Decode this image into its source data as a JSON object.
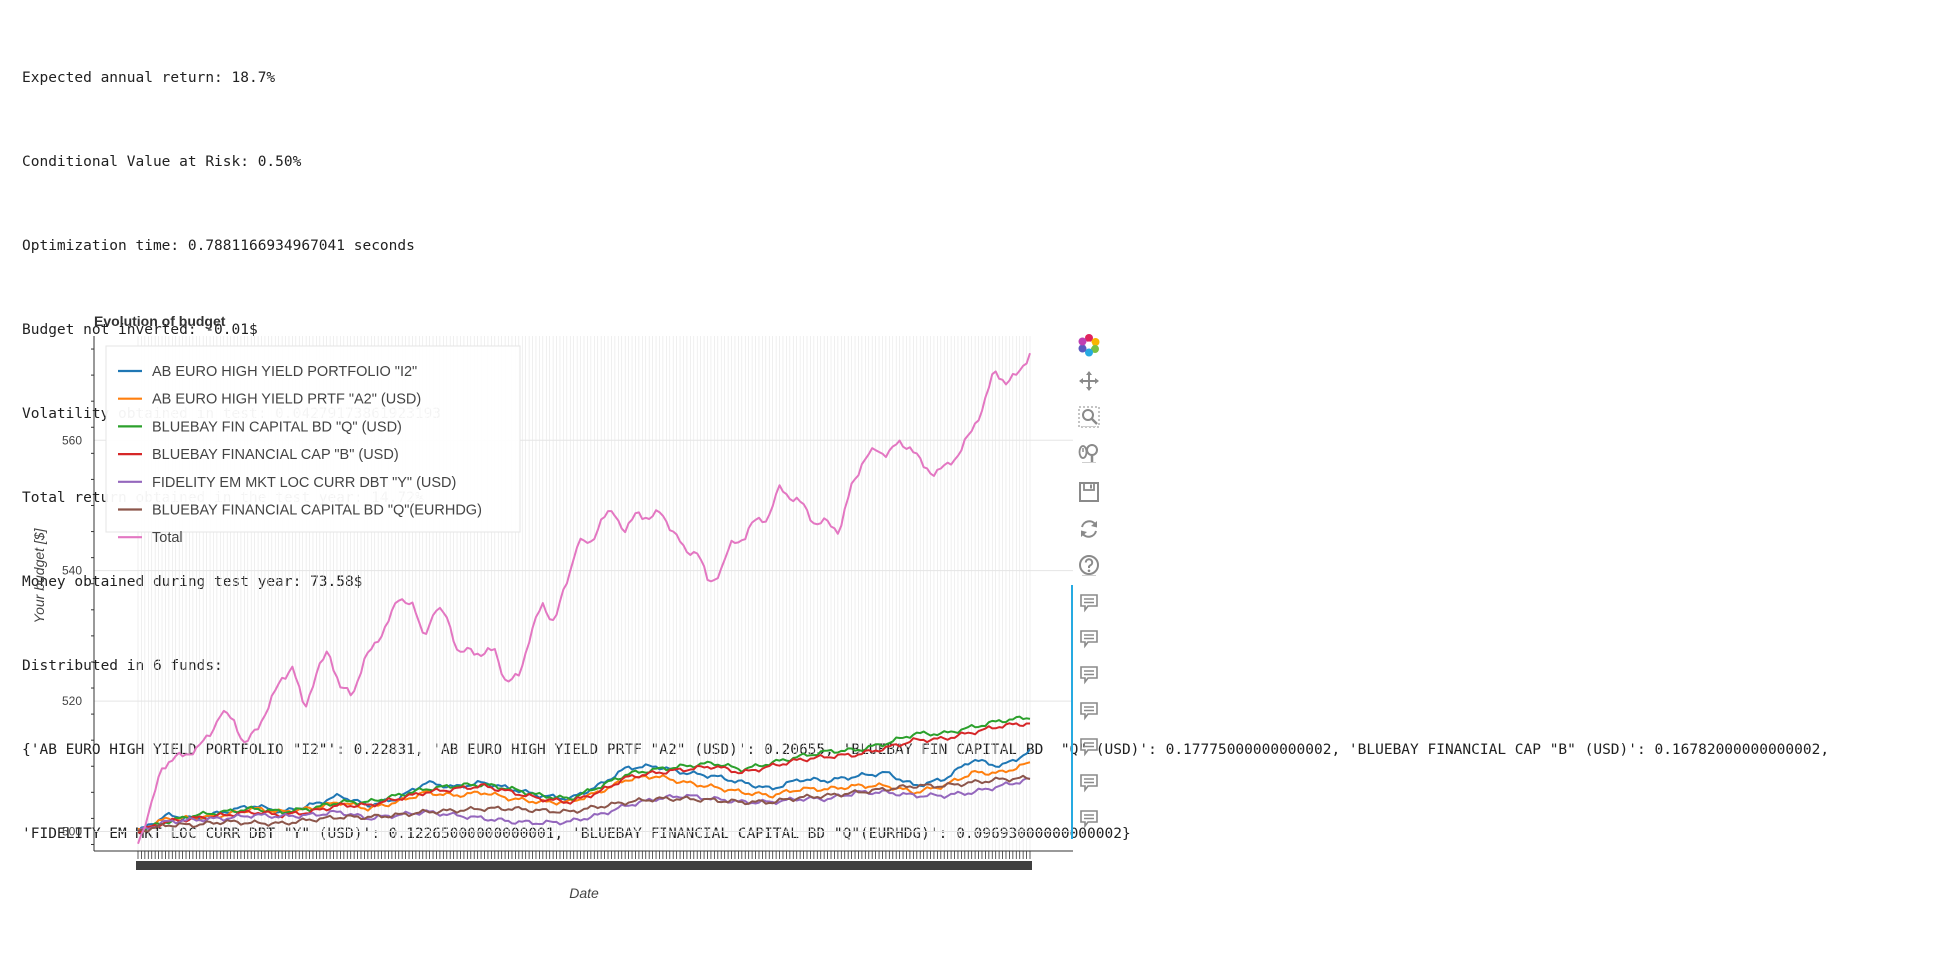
{
  "output": {
    "lines": [
      "Expected annual return: 18.7%",
      "Conditional Value at Risk: 0.50%",
      "Optimization time: 0.7881166934967041 seconds",
      "Budget not inverted: -0.01$",
      "Volatility obtained in test: 0.04279173861923193",
      "Total return obtained in the test year: 14.72%",
      "Money obtained during test year: 73.58$",
      "Distributed in 6 funds:",
      "{'AB EURO HIGH YIELD PORTFOLIO \"I2\"': 0.22831, 'AB EURO HIGH YIELD PRTF \"A2\" (USD)': 0.20655, 'BLUEBAY FIN CAPITAL BD  \"Q\" (USD)': 0.17775000000000002, 'BLUEBAY FINANCIAL CAP \"B\" (USD)': 0.16782000000000002,",
      "'FIDELITY EM MKT LOC CURR DBT \"Y\" (USD)': 0.12265000000000001, 'BLUEBAY FINANCIAL CAPITAL BD \"Q\"(EURHDG)': 0.09693000000000002}"
    ]
  },
  "chart_data": {
    "type": "line",
    "title": "Evolution of budget",
    "xlabel": "Date",
    "ylabel": "Your budget [$]",
    "ylim": [
      497,
      576
    ],
    "yticks": [
      500,
      520,
      540,
      560
    ],
    "x_points": 261,
    "grid": true,
    "legend_position": "top-left",
    "series": [
      {
        "name": "AB EURO HIGH YIELD PORTFOLIO \"I2\"",
        "color": "#1f77b4",
        "anchors": [
          [
            0,
            500
          ],
          [
            10,
            502.5
          ],
          [
            20,
            502
          ],
          [
            30,
            503
          ],
          [
            40,
            504
          ],
          [
            50,
            503
          ],
          [
            60,
            504
          ],
          [
            70,
            505.5
          ],
          [
            80,
            504
          ],
          [
            90,
            505
          ],
          [
            100,
            507.5
          ],
          [
            110,
            506.8
          ],
          [
            120,
            507.5
          ],
          [
            130,
            506.5
          ],
          [
            140,
            505.5
          ],
          [
            150,
            505
          ],
          [
            160,
            507
          ],
          [
            170,
            509.8
          ],
          [
            180,
            510
          ],
          [
            190,
            509
          ],
          [
            200,
            508.5
          ],
          [
            210,
            507.5
          ],
          [
            220,
            506.5
          ],
          [
            230,
            508
          ],
          [
            240,
            507.8
          ],
          [
            250,
            508.5
          ],
          [
            260,
            509
          ],
          [
            270,
            507
          ],
          [
            280,
            508
          ],
          [
            290,
            511
          ],
          [
            300,
            510
          ],
          [
            310,
            512.2
          ]
        ]
      },
      {
        "name": "AB EURO HIGH YIELD PRTF \"A2\" (USD)",
        "color": "#ff7f0e",
        "anchors": [
          [
            0,
            500
          ],
          [
            10,
            502
          ],
          [
            20,
            502
          ],
          [
            30,
            502.5
          ],
          [
            40,
            503.5
          ],
          [
            50,
            503
          ],
          [
            60,
            503.5
          ],
          [
            70,
            504.5
          ],
          [
            80,
            503.5
          ],
          [
            90,
            504.5
          ],
          [
            100,
            506
          ],
          [
            110,
            505.5
          ],
          [
            120,
            506
          ],
          [
            130,
            505
          ],
          [
            140,
            504.5
          ],
          [
            150,
            504.5
          ],
          [
            160,
            506
          ],
          [
            170,
            508
          ],
          [
            180,
            508.5
          ],
          [
            190,
            507.5
          ],
          [
            200,
            506.8
          ],
          [
            210,
            506
          ],
          [
            220,
            505.5
          ],
          [
            230,
            506.5
          ],
          [
            240,
            506.5
          ],
          [
            250,
            507
          ],
          [
            260,
            507
          ],
          [
            270,
            506
          ],
          [
            280,
            507
          ],
          [
            290,
            509
          ],
          [
            300,
            509
          ],
          [
            310,
            510.5
          ]
        ]
      },
      {
        "name": "BLUEBAY FIN CAPITAL BD  \"Q\" (USD)",
        "color": "#2ca02c",
        "anchors": [
          [
            0,
            500
          ],
          [
            10,
            501.5
          ],
          [
            20,
            502.5
          ],
          [
            30,
            503
          ],
          [
            40,
            503.5
          ],
          [
            50,
            503
          ],
          [
            60,
            503.5
          ],
          [
            70,
            504.5
          ],
          [
            80,
            504.5
          ],
          [
            90,
            505.5
          ],
          [
            100,
            506.5
          ],
          [
            110,
            507
          ],
          [
            120,
            507.2
          ],
          [
            130,
            506.5
          ],
          [
            140,
            505.5
          ],
          [
            150,
            505
          ],
          [
            160,
            506.8
          ],
          [
            170,
            508.8
          ],
          [
            180,
            509.5
          ],
          [
            190,
            510
          ],
          [
            200,
            510.5
          ],
          [
            210,
            509.5
          ],
          [
            220,
            510.5
          ],
          [
            230,
            511.5
          ],
          [
            240,
            512.3
          ],
          [
            250,
            512.5
          ],
          [
            260,
            513.5
          ],
          [
            270,
            515
          ],
          [
            280,
            515
          ],
          [
            290,
            516
          ],
          [
            300,
            517
          ],
          [
            310,
            517.5
          ]
        ]
      },
      {
        "name": "BLUEBAY FINANCIAL CAP \"B\" (USD)",
        "color": "#d62728",
        "anchors": [
          [
            0,
            500
          ],
          [
            10,
            501.5
          ],
          [
            20,
            502
          ],
          [
            30,
            502.5
          ],
          [
            40,
            503
          ],
          [
            50,
            502.5
          ],
          [
            60,
            503
          ],
          [
            70,
            504
          ],
          [
            80,
            504
          ],
          [
            90,
            505
          ],
          [
            100,
            506
          ],
          [
            110,
            506.5
          ],
          [
            120,
            507
          ],
          [
            130,
            506
          ],
          [
            140,
            505
          ],
          [
            150,
            504.5
          ],
          [
            160,
            506
          ],
          [
            170,
            508.3
          ],
          [
            180,
            509
          ],
          [
            190,
            509.5
          ],
          [
            200,
            510
          ],
          [
            210,
            509
          ],
          [
            220,
            510
          ],
          [
            230,
            511
          ],
          [
            240,
            511.5
          ],
          [
            250,
            511.8
          ],
          [
            260,
            512.8
          ],
          [
            270,
            514
          ],
          [
            280,
            514.2
          ],
          [
            290,
            515.2
          ],
          [
            300,
            516.2
          ],
          [
            310,
            516.6
          ]
        ]
      },
      {
        "name": "FIDELITY EM MKT LOC CURR DBT \"Y\" (USD)",
        "color": "#9467bd",
        "anchors": [
          [
            0,
            500
          ],
          [
            10,
            501.5
          ],
          [
            20,
            501.8
          ],
          [
            30,
            502
          ],
          [
            40,
            502.5
          ],
          [
            50,
            502.3
          ],
          [
            60,
            502.5
          ],
          [
            70,
            503
          ],
          [
            80,
            502
          ],
          [
            90,
            502.5
          ],
          [
            100,
            503
          ],
          [
            110,
            502.5
          ],
          [
            120,
            502
          ],
          [
            130,
            501.5
          ],
          [
            140,
            501.3
          ],
          [
            150,
            501.5
          ],
          [
            160,
            502.5
          ],
          [
            170,
            504
          ],
          [
            180,
            505
          ],
          [
            190,
            505.5
          ],
          [
            200,
            505
          ],
          [
            210,
            504.5
          ],
          [
            220,
            504.5
          ],
          [
            230,
            505
          ],
          [
            240,
            505
          ],
          [
            250,
            506
          ],
          [
            260,
            506
          ],
          [
            270,
            505.5
          ],
          [
            280,
            505.5
          ],
          [
            290,
            506
          ],
          [
            300,
            507
          ],
          [
            310,
            508
          ]
        ]
      },
      {
        "name": "BLUEBAY FINANCIAL CAPITAL BD \"Q\"(EURHDG)",
        "color": "#8c564b",
        "anchors": [
          [
            0,
            500
          ],
          [
            10,
            501
          ],
          [
            20,
            501
          ],
          [
            30,
            501.5
          ],
          [
            40,
            501.3
          ],
          [
            50,
            501.2
          ],
          [
            60,
            501.8
          ],
          [
            70,
            502.2
          ],
          [
            80,
            502.2
          ],
          [
            90,
            502.5
          ],
          [
            100,
            503
          ],
          [
            110,
            503.2
          ],
          [
            120,
            503.5
          ],
          [
            130,
            503.5
          ],
          [
            140,
            503.2
          ],
          [
            150,
            503
          ],
          [
            160,
            503.8
          ],
          [
            170,
            504.5
          ],
          [
            180,
            505
          ],
          [
            190,
            505
          ],
          [
            200,
            504.8
          ],
          [
            210,
            504.5
          ],
          [
            220,
            504.5
          ],
          [
            230,
            505.2
          ],
          [
            240,
            505.5
          ],
          [
            250,
            506
          ],
          [
            260,
            506.5
          ],
          [
            270,
            507
          ],
          [
            280,
            507
          ],
          [
            290,
            507.5
          ],
          [
            300,
            508
          ],
          [
            310,
            508.2
          ]
        ]
      },
      {
        "name": "Total",
        "color": "#e377c2",
        "anchors": [
          [
            0,
            498.5
          ],
          [
            4,
            503
          ],
          [
            8,
            510
          ],
          [
            12,
            511
          ],
          [
            16,
            512
          ],
          [
            20,
            512.5
          ],
          [
            24,
            515
          ],
          [
            28,
            518
          ],
          [
            32,
            517.5
          ],
          [
            36,
            513
          ],
          [
            40,
            516
          ],
          [
            44,
            519
          ],
          [
            48,
            523.5
          ],
          [
            52,
            525
          ],
          [
            56,
            519
          ],
          [
            60,
            524
          ],
          [
            64,
            528
          ],
          [
            68,
            522
          ],
          [
            72,
            521
          ],
          [
            76,
            526
          ],
          [
            80,
            529
          ],
          [
            84,
            532
          ],
          [
            88,
            536
          ],
          [
            92,
            535
          ],
          [
            96,
            530
          ],
          [
            100,
            534
          ],
          [
            104,
            533
          ],
          [
            108,
            527
          ],
          [
            112,
            528
          ],
          [
            116,
            527
          ],
          [
            120,
            528
          ],
          [
            124,
            522.5
          ],
          [
            128,
            524
          ],
          [
            132,
            530
          ],
          [
            136,
            535
          ],
          [
            140,
            532
          ],
          [
            144,
            538
          ],
          [
            148,
            544.5
          ],
          [
            152,
            544
          ],
          [
            156,
            548
          ],
          [
            160,
            549
          ],
          [
            164,
            546
          ],
          [
            168,
            549
          ],
          [
            172,
            548
          ],
          [
            176,
            549
          ],
          [
            180,
            546
          ],
          [
            184,
            543
          ],
          [
            188,
            543
          ],
          [
            192,
            538
          ],
          [
            196,
            540
          ],
          [
            200,
            544.5
          ],
          [
            204,
            545
          ],
          [
            208,
            548
          ],
          [
            212,
            548
          ],
          [
            216,
            553
          ],
          [
            220,
            551
          ],
          [
            224,
            550
          ],
          [
            228,
            547
          ],
          [
            232,
            547.5
          ],
          [
            236,
            546
          ],
          [
            240,
            553
          ],
          [
            244,
            557
          ],
          [
            248,
            558.5
          ],
          [
            252,
            558
          ],
          [
            256,
            559.5
          ],
          [
            260,
            559
          ],
          [
            264,
            556
          ],
          [
            268,
            555
          ],
          [
            272,
            556
          ],
          [
            276,
            558
          ],
          [
            280,
            561
          ],
          [
            284,
            565
          ],
          [
            288,
            570.5
          ],
          [
            292,
            569
          ],
          [
            296,
            570
          ],
          [
            300,
            573.5
          ]
        ]
      }
    ]
  },
  "toolbar": {
    "tools": [
      {
        "name": "bokeh-logo-icon",
        "interactive": false
      },
      {
        "name": "pan-icon",
        "interactive": true
      },
      {
        "name": "box-zoom-icon",
        "interactive": true
      },
      {
        "name": "wheel-zoom-icon",
        "interactive": true
      },
      {
        "name": "save-icon",
        "interactive": true
      },
      {
        "name": "reset-icon",
        "interactive": true
      },
      {
        "name": "help-icon",
        "interactive": true
      },
      {
        "name": "hover-icon",
        "interactive": true
      },
      {
        "name": "hover-icon",
        "interactive": true
      },
      {
        "name": "hover-icon",
        "interactive": true
      },
      {
        "name": "hover-icon",
        "interactive": true
      },
      {
        "name": "hover-icon",
        "interactive": true
      },
      {
        "name": "hover-icon",
        "interactive": true
      },
      {
        "name": "hover-icon",
        "interactive": true
      }
    ]
  }
}
